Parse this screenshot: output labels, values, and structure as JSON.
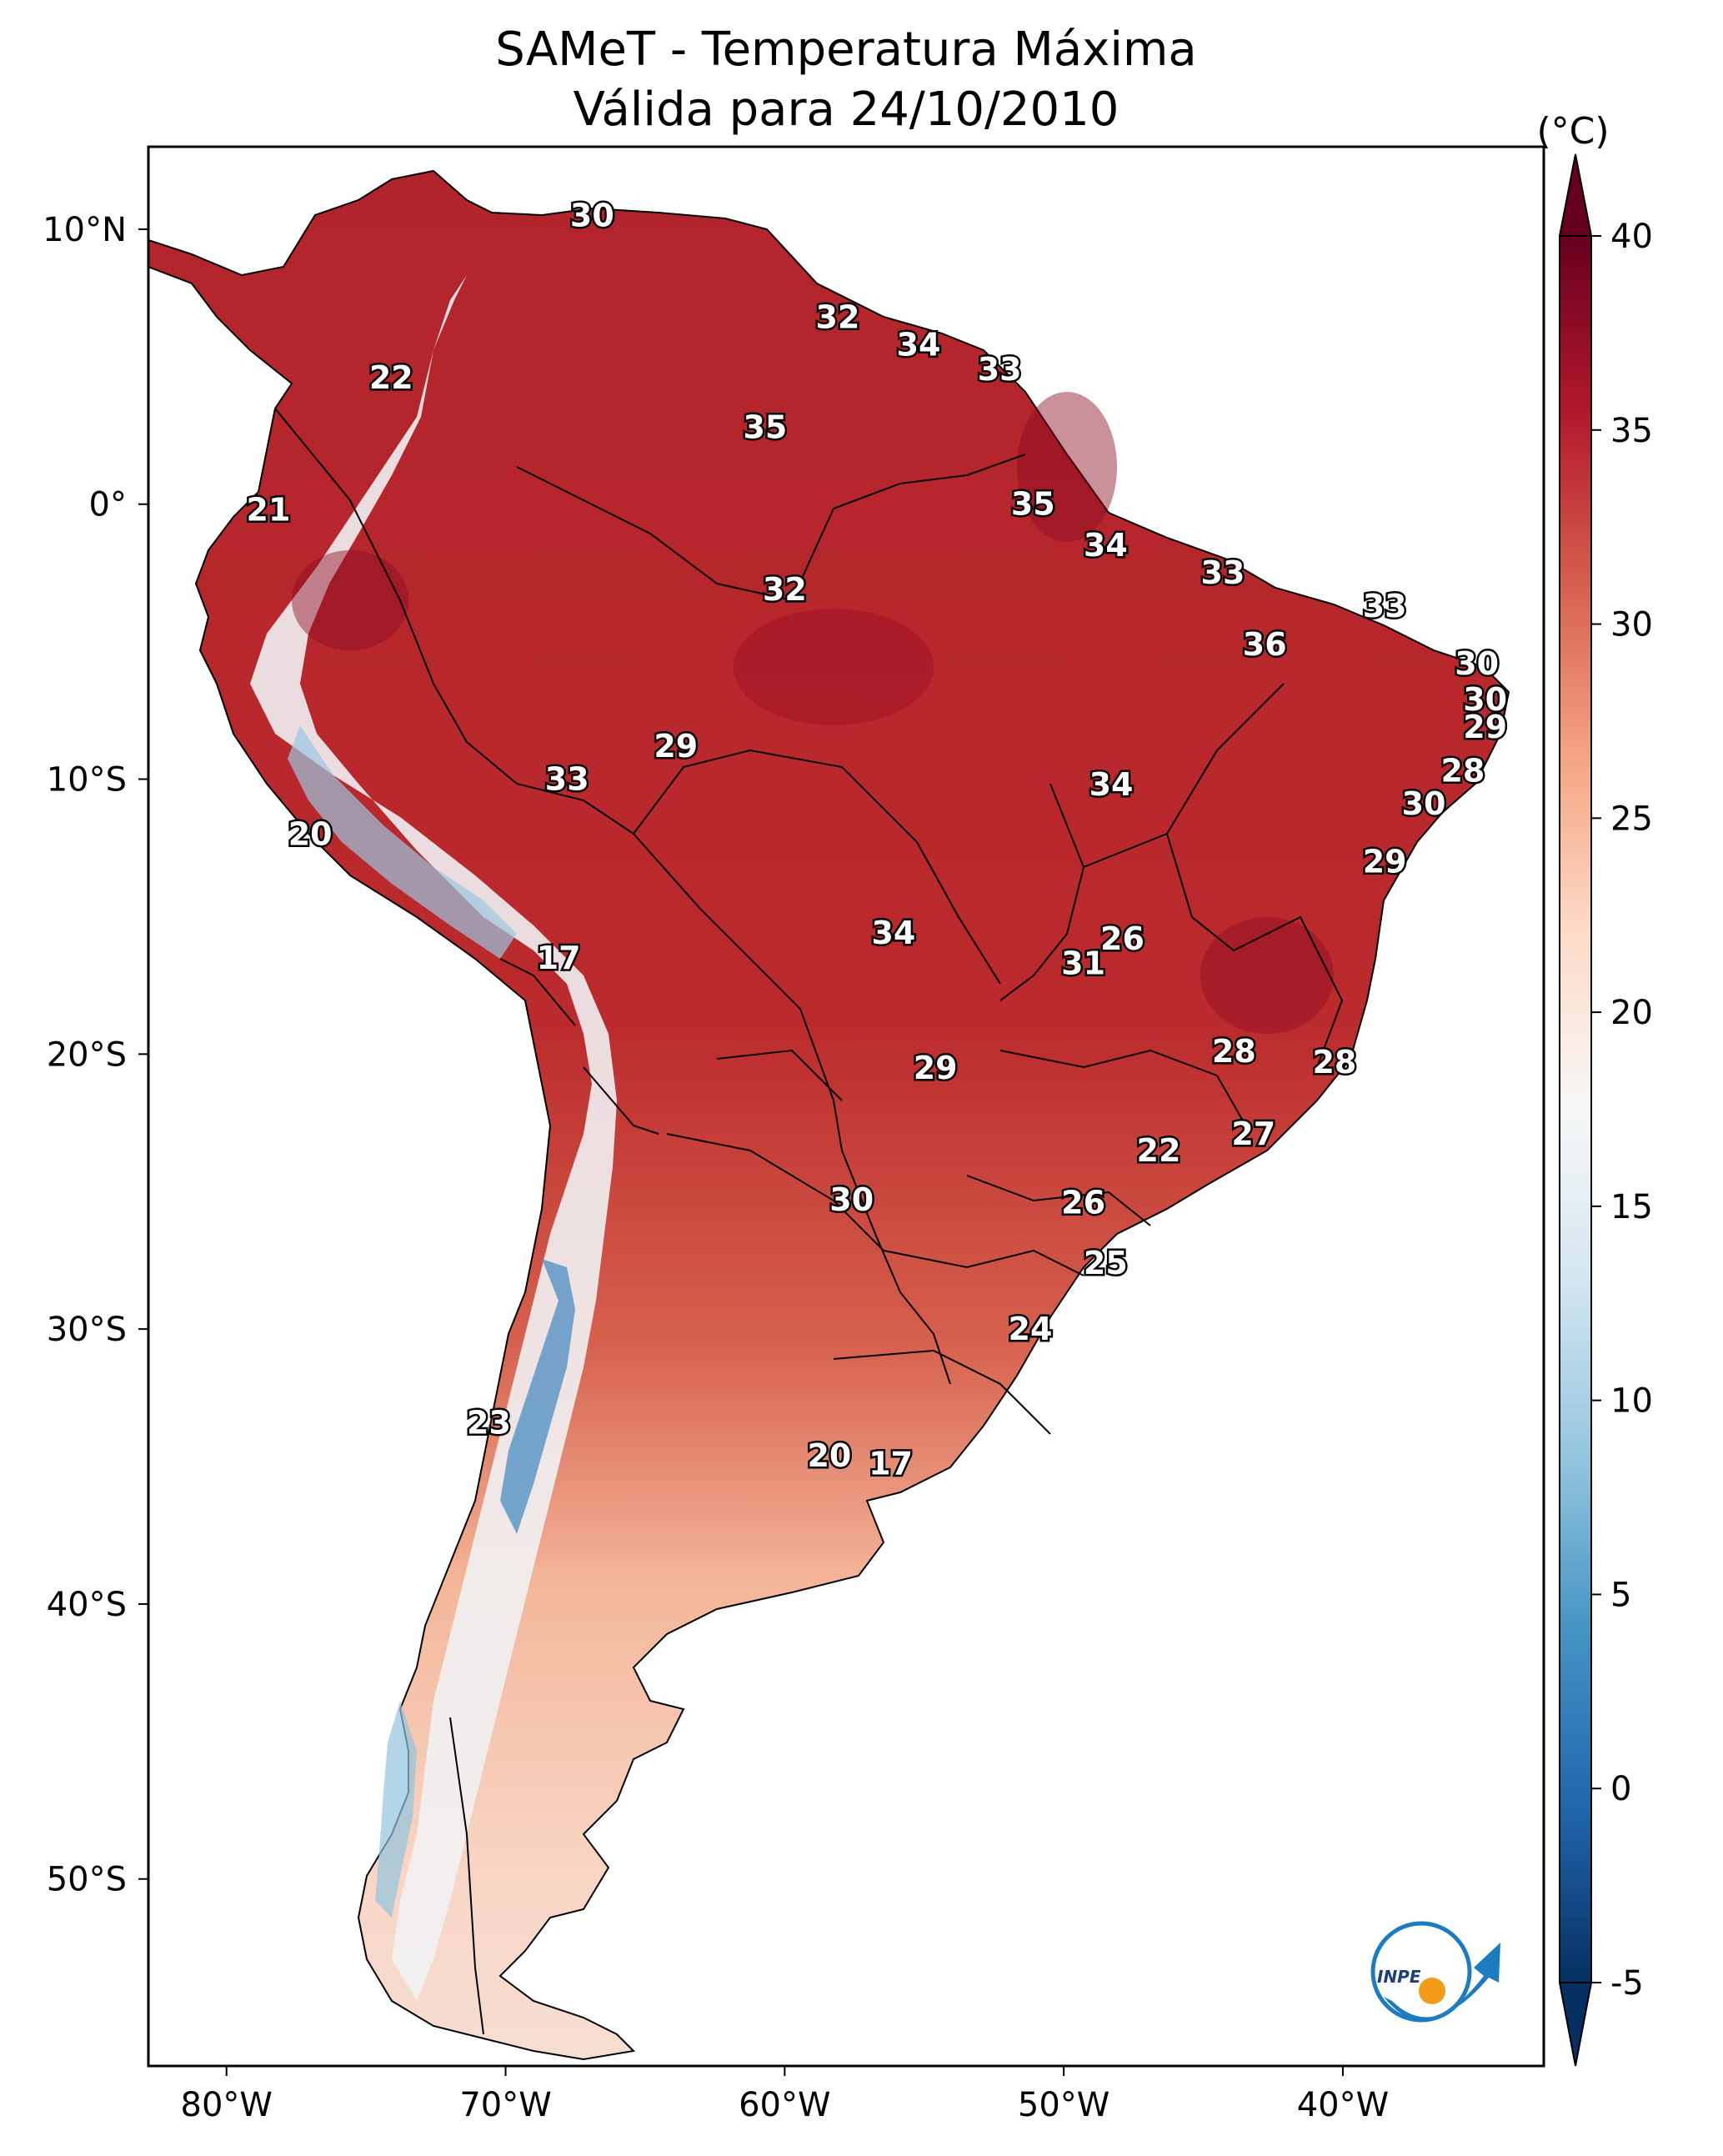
{
  "title": {
    "line1": "SAMeT - Temperatura Máxima",
    "line2": "Válida para 24/10/2010"
  },
  "colorbar": {
    "unit": "(°C)",
    "ticks": [
      "40",
      "35",
      "30",
      "25",
      "20",
      "15",
      "10",
      "5",
      "0",
      "-5"
    ],
    "gradient": [
      "#67001f",
      "#b2182b",
      "#d6604d",
      "#f4a582",
      "#fddbc7",
      "#f7f7f7",
      "#d1e5f0",
      "#92c5de",
      "#4393c3",
      "#2166ac",
      "#053061"
    ]
  },
  "axes": {
    "lon_labels": [
      "80°W",
      "70°W",
      "60°W",
      "50°W",
      "40°W"
    ],
    "lat_labels": [
      "10°N",
      "0°",
      "10°S",
      "20°S",
      "30°S",
      "40°S",
      "50°S"
    ]
  },
  "map_extent": {
    "lon_min": -82.8,
    "lon_max": -32.8,
    "lat_min": -56.8,
    "lat_max": 13.0
  },
  "city_values": [
    {
      "value": "30",
      "lon": -66.9,
      "lat": 10.5
    },
    {
      "value": "32",
      "lon": -58.1,
      "lat": 6.8
    },
    {
      "value": "34",
      "lon": -55.2,
      "lat": 5.8
    },
    {
      "value": "33",
      "lon": -52.3,
      "lat": 4.9
    },
    {
      "value": "22",
      "lon": -74.1,
      "lat": 4.6
    },
    {
      "value": "35",
      "lon": -60.7,
      "lat": 2.8
    },
    {
      "value": "21",
      "lon": -78.5,
      "lat": -0.2
    },
    {
      "value": "35",
      "lon": -51.1,
      "lat": 0.0
    },
    {
      "value": "34",
      "lon": -48.5,
      "lat": -1.5
    },
    {
      "value": "33",
      "lon": -44.3,
      "lat": -2.5
    },
    {
      "value": "32",
      "lon": -60.0,
      "lat": -3.1
    },
    {
      "value": "33",
      "lon": -38.5,
      "lat": -3.7
    },
    {
      "value": "36",
      "lon": -42.8,
      "lat": -5.1
    },
    {
      "value": "30",
      "lon": -35.2,
      "lat": -5.8
    },
    {
      "value": "30",
      "lon": -34.9,
      "lat": -7.1
    },
    {
      "value": "29",
      "lon": -34.9,
      "lat": -8.1
    },
    {
      "value": "29",
      "lon": -63.9,
      "lat": -8.8
    },
    {
      "value": "28",
      "lon": -35.7,
      "lat": -9.7
    },
    {
      "value": "34",
      "lon": -48.3,
      "lat": -10.2
    },
    {
      "value": "33",
      "lon": -67.8,
      "lat": -10.0
    },
    {
      "value": "30",
      "lon": -37.1,
      "lat": -10.9
    },
    {
      "value": "20",
      "lon": -77.0,
      "lat": -12.0
    },
    {
      "value": "29",
      "lon": -38.5,
      "lat": -13.0
    },
    {
      "value": "34",
      "lon": -56.1,
      "lat": -15.6
    },
    {
      "value": "26",
      "lon": -47.9,
      "lat": -15.8
    },
    {
      "value": "17",
      "lon": -68.1,
      "lat": -16.5
    },
    {
      "value": "31",
      "lon": -49.3,
      "lat": -16.7
    },
    {
      "value": "28",
      "lon": -43.9,
      "lat": -19.9
    },
    {
      "value": "28",
      "lon": -40.3,
      "lat": -20.3
    },
    {
      "value": "29",
      "lon": -54.6,
      "lat": -20.5
    },
    {
      "value": "27",
      "lon": -43.2,
      "lat": -22.9
    },
    {
      "value": "22",
      "lon": -46.6,
      "lat": -23.5
    },
    {
      "value": "30",
      "lon": -57.6,
      "lat": -25.3
    },
    {
      "value": "26",
      "lon": -49.3,
      "lat": -25.4
    },
    {
      "value": "25",
      "lon": -48.5,
      "lat": -27.6
    },
    {
      "value": "24",
      "lon": -51.2,
      "lat": -30.0
    },
    {
      "value": "23",
      "lon": -70.6,
      "lat": -33.4
    },
    {
      "value": "20",
      "lon": -58.4,
      "lat": -34.6
    },
    {
      "value": "17",
      "lon": -56.2,
      "lat": -34.9
    }
  ],
  "logo": {
    "text": "INPE"
  }
}
